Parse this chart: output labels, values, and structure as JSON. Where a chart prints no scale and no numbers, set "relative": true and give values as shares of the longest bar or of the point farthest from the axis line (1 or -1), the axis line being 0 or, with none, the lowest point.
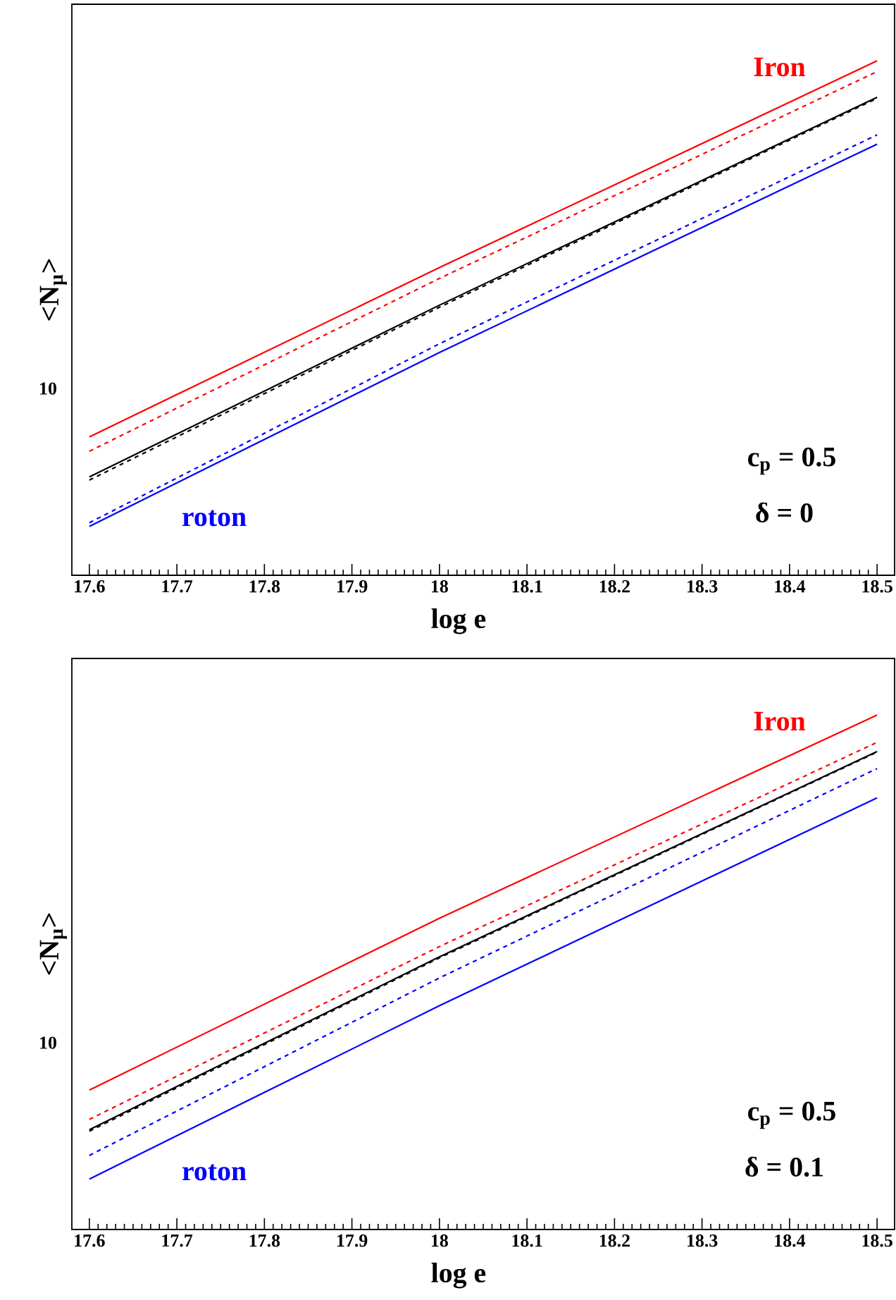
{
  "chart_data": [
    {
      "type": "line",
      "relative": true,
      "xlabel": "log e",
      "ylabel": "<N$_{μ}$>",
      "xlim": [
        17.58,
        18.52
      ],
      "xticks": [
        17.6,
        17.7,
        17.8,
        17.9,
        18,
        18.1,
        18.2,
        18.3,
        18.4,
        18.5
      ],
      "series": [
        {
          "color": "#ff0000",
          "line_style": "solid",
          "x": [
            17.6,
            18.0,
            18.5
          ],
          "values": [
            0.269,
            0.598,
            1
          ]
        },
        {
          "color": "#ff0000",
          "line_style": "dashed",
          "x": [
            17.6,
            18.0,
            18.5
          ],
          "values": [
            0.241,
            0.577,
            0.979
          ]
        },
        {
          "color": "#000000",
          "line_style": "solid",
          "x": [
            17.6,
            18.0,
            18.5
          ],
          "values": [
            0.191,
            0.525,
            0.929
          ]
        },
        {
          "color": "#000000",
          "line_style": "dashed",
          "x": [
            17.6,
            18.0,
            18.5
          ],
          "values": [
            0.185,
            0.521,
            0.927
          ]
        },
        {
          "color": "#0000ff",
          "line_style": "dashed",
          "x": [
            17.6,
            18.0,
            18.5
          ],
          "values": [
            0.102,
            0.45,
            0.856
          ]
        },
        {
          "color": "#0000ff",
          "line_style": "solid",
          "x": [
            17.6,
            18.0,
            18.5
          ],
          "values": [
            0.095,
            0.433,
            0.838
          ]
        }
      ],
      "annotations": [
        "Iron",
        "roton",
        "c$_{p}$ = 0.5",
        "δ = 0",
        "10"
      ]
    },
    {
      "type": "line",
      "relative": true,
      "xlabel": "log e",
      "ylabel": "<N$_{μ}$>",
      "xlim": [
        17.58,
        18.52
      ],
      "xticks": [
        17.6,
        17.7,
        17.8,
        17.9,
        18,
        18.1,
        18.2,
        18.3,
        18.4,
        18.5
      ],
      "series": [
        {
          "color": "#ff0000",
          "line_style": "solid",
          "x": [
            17.6,
            18.0,
            18.5
          ],
          "values": [
            0.271,
            0.605,
            1
          ]
        },
        {
          "color": "#ff0000",
          "line_style": "dashed",
          "x": [
            17.6,
            18.0,
            18.5
          ],
          "values": [
            0.214,
            0.55,
            0.947
          ]
        },
        {
          "color": "#000000",
          "line_style": "solid",
          "x": [
            17.6,
            18.0,
            18.5
          ],
          "values": [
            0.194,
            0.53,
            0.929
          ]
        },
        {
          "color": "#000000",
          "line_style": "dashed",
          "x": [
            17.6,
            18.0,
            18.5
          ],
          "values": [
            0.191,
            0.528,
            0.928
          ]
        },
        {
          "color": "#0000ff",
          "line_style": "dashed",
          "x": [
            17.6,
            18.0,
            18.5
          ],
          "values": [
            0.144,
            0.489,
            0.896
          ]
        },
        {
          "color": "#0000ff",
          "line_style": "solid",
          "x": [
            17.6,
            18.0,
            18.5
          ],
          "values": [
            0.098,
            0.435,
            0.839
          ]
        }
      ],
      "annotations": [
        "Iron",
        "roton",
        "c$_{p}$ = 0.5",
        "δ = 0.1",
        "10"
      ]
    }
  ]
}
